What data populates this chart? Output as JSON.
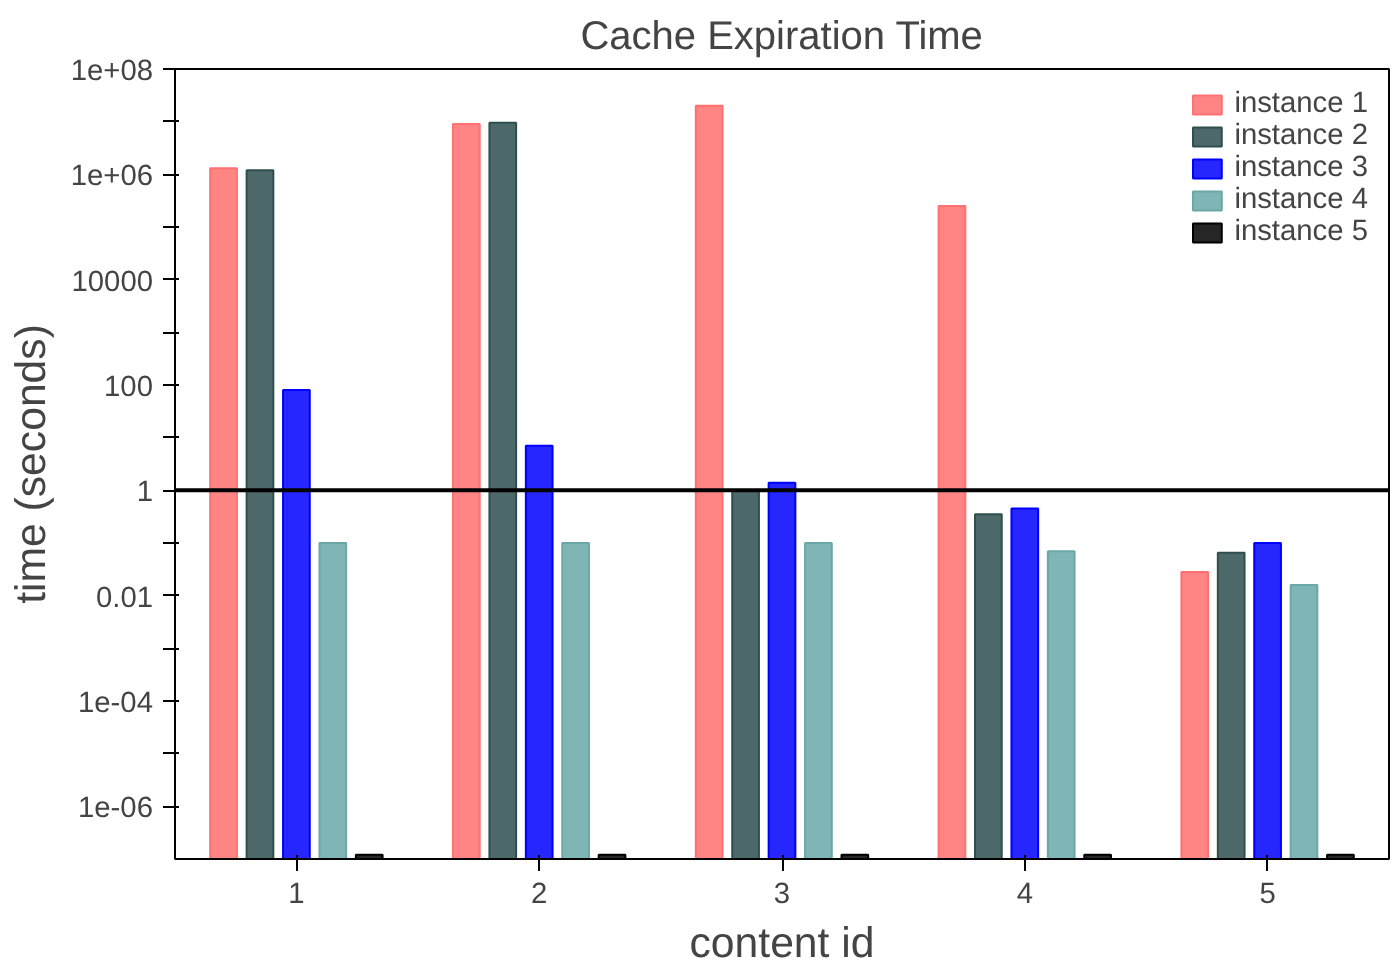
{
  "chart_data": {
    "type": "bar",
    "title": "Cache Expiration Time",
    "xlabel": "content id",
    "ylabel": "time (seconds)",
    "categories": [
      "1",
      "2",
      "3",
      "4",
      "5"
    ],
    "series": [
      {
        "name": "instance 1",
        "color": "#ff7070",
        "values": [
          1300000.0,
          9000000.0,
          20000000.0,
          250000.0,
          0.028
        ]
      },
      {
        "name": "instance 2",
        "color": "#2f4f4f",
        "values": [
          1200000.0,
          9500000.0,
          1,
          0.35,
          0.065
        ]
      },
      {
        "name": "instance 3",
        "color": "#0000ff",
        "values": [
          80,
          7,
          1.4,
          0.45,
          0.1
        ]
      },
      {
        "name": "instance 4",
        "color": "#6aa8a8",
        "values": [
          0.1,
          0.1,
          0.1,
          0.07,
          0.016
        ]
      },
      {
        "name": "instance 5",
        "color": "#000000",
        "values": [
          1.2e-07,
          1.2e-07,
          1.2e-07,
          1.2e-07,
          1.2e-07
        ]
      }
    ],
    "log": "y",
    "ylim": [
      1e-07,
      100000000.0
    ],
    "yticks": [
      {
        "value": 1e-06,
        "label": "1e-06"
      },
      {
        "value": 1e-05,
        "label": null
      },
      {
        "value": 0.0001,
        "label": "1e-04"
      },
      {
        "value": 0.001,
        "label": null
      },
      {
        "value": 0.01,
        "label": "0.01"
      },
      {
        "value": 0.1,
        "label": null
      },
      1,
      {
        "value": 10,
        "label": null
      },
      100,
      {
        "value": 1000,
        "label": null
      },
      10000,
      {
        "value": 100000.0,
        "label": null
      },
      {
        "value": 1000000.0,
        "label": "1e+06"
      },
      {
        "value": 10000000.0,
        "label": null
      },
      {
        "value": 100000000.0,
        "label": "1e+08"
      }
    ],
    "ref_lines": [
      {
        "axis": "y",
        "value": 1,
        "color": "#000000"
      }
    ],
    "grid": false,
    "legend": "top right"
  }
}
